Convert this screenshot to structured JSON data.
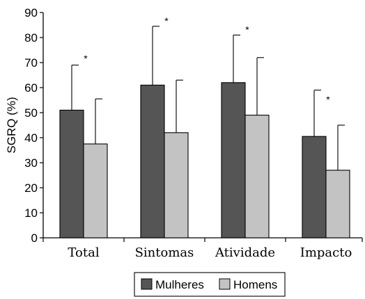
{
  "chart_data": {
    "type": "bar",
    "title": "",
    "xlabel": "",
    "ylabel": "SGRQ (%)",
    "ylim": [
      0,
      90
    ],
    "yticks": [
      0,
      10,
      20,
      30,
      40,
      50,
      60,
      70,
      80,
      90
    ],
    "categories": [
      "Total",
      "Sintomas",
      "Atividade",
      "Impacto"
    ],
    "series": [
      {
        "name": "Mulheres",
        "color": "#555555",
        "values": [
          51,
          61,
          62,
          40.5
        ],
        "error_upper": [
          69,
          84.5,
          81,
          59
        ]
      },
      {
        "name": "Homens",
        "color": "#c3c3c3",
        "values": [
          37.5,
          42,
          49,
          27
        ],
        "error_upper": [
          55.5,
          63,
          72,
          45
        ]
      }
    ],
    "annotations": [
      {
        "category": "Total",
        "text": "*",
        "y": 72
      },
      {
        "category": "Sintomas",
        "text": "*",
        "y": 87
      },
      {
        "category": "Atividade",
        "text": "*",
        "y": 83.5
      },
      {
        "category": "Impacto",
        "text": "*",
        "y": 55.5
      }
    ],
    "grid": false,
    "legend_position": "bottom"
  }
}
